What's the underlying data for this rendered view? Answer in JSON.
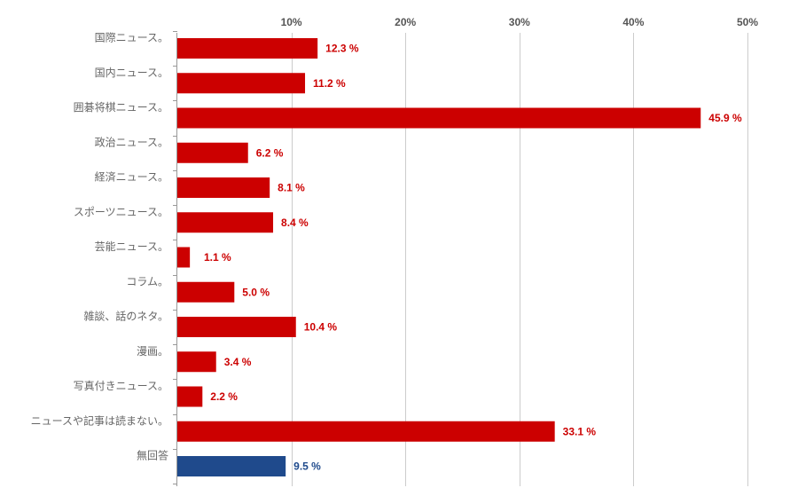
{
  "chart_data": {
    "type": "bar",
    "orientation": "horizontal",
    "title": "",
    "xlabel": "",
    "ylabel": "",
    "xlim": [
      0,
      50
    ],
    "x_ticks": [
      "10%",
      "20%",
      "30%",
      "40%",
      "50%"
    ],
    "x_tick_values": [
      10,
      20,
      30,
      40,
      50
    ],
    "grid": true,
    "legend": "none",
    "value_suffix": " %",
    "colors": {
      "default": "#cc0000",
      "highlight": "#1f4a8c",
      "label_default": "#cc0000",
      "label_highlight": "#1f4a8c",
      "grid": "#cccccc"
    },
    "categories": [
      "国際ニュース。",
      "国内ニュース。",
      "囲碁将棋ニュース。",
      "政治ニュース。",
      "経済ニュース。",
      "スポーツニュース。",
      "芸能ニュース。",
      "コラム。",
      "雑談、話のネタ。",
      "漫画。",
      "写真付きニュース。",
      "ニュースや記事は読まない。",
      "無回答"
    ],
    "values": [
      12.3,
      11.2,
      45.9,
      6.2,
      8.1,
      8.4,
      1.1,
      5.0,
      10.4,
      3.4,
      2.2,
      33.1,
      9.5
    ],
    "value_labels": [
      "12.3 %",
      "11.2 %",
      "45.9 %",
      "6.2 %",
      "8.1 %",
      "8.4 %",
      "1.1 %",
      "5.0 %",
      "10.4 %",
      "3.4 %",
      "2.2 %",
      "33.1 %",
      "9.5 %"
    ],
    "highlight_index": 12
  }
}
